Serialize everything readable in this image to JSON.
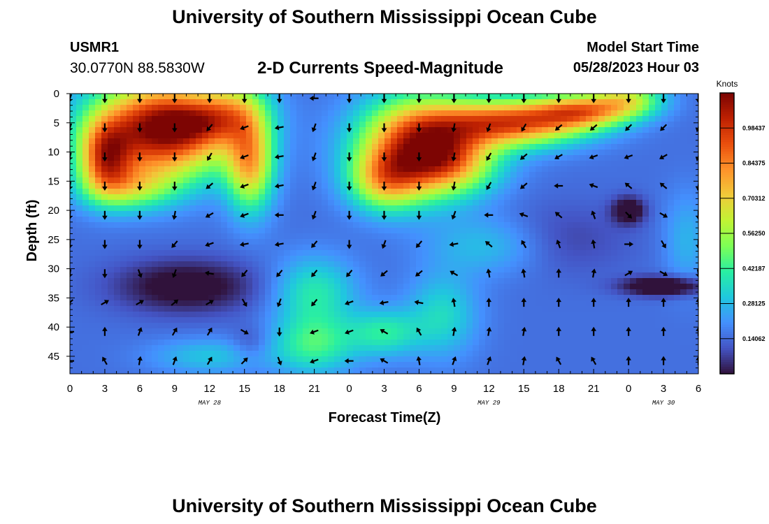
{
  "page": {
    "title": "University of Southern Mississippi Ocean Cube",
    "station_id": "USMR1",
    "station_coords": "30.0770N  88.5830W",
    "subtitle": "2-D Currents Speed-Magnitude",
    "model_start_label": "Model Start Time",
    "model_start_value": "05/28/2023 Hour 03",
    "footer_title": "University of Southern Mississippi Ocean Cube"
  },
  "chart_data": {
    "type": "heatmap",
    "title": "2-D Currents Speed-Magnitude",
    "xlabel": "Forecast Time(Z)",
    "ylabel": "Depth (ft)",
    "x_range_hours": [
      0,
      54
    ],
    "y_range_ft": [
      0,
      48
    ],
    "y_inverted": true,
    "x_ticks": [
      {
        "hour": 0,
        "label": "0"
      },
      {
        "hour": 3,
        "label": "3"
      },
      {
        "hour": 6,
        "label": "6"
      },
      {
        "hour": 9,
        "label": "9"
      },
      {
        "hour": 12,
        "label": "12"
      },
      {
        "hour": 15,
        "label": "15"
      },
      {
        "hour": 18,
        "label": "18"
      },
      {
        "hour": 21,
        "label": "21"
      },
      {
        "hour": 24,
        "label": "0"
      },
      {
        "hour": 27,
        "label": "3"
      },
      {
        "hour": 30,
        "label": "6"
      },
      {
        "hour": 33,
        "label": "9"
      },
      {
        "hour": 36,
        "label": "12"
      },
      {
        "hour": 39,
        "label": "15"
      },
      {
        "hour": 42,
        "label": "18"
      },
      {
        "hour": 45,
        "label": "21"
      },
      {
        "hour": 48,
        "label": "0"
      },
      {
        "hour": 51,
        "label": "3"
      },
      {
        "hour": 54,
        "label": "6"
      }
    ],
    "date_labels": [
      {
        "hour": 12,
        "label": "MAY 28"
      },
      {
        "hour": 36,
        "label": "MAY 29"
      },
      {
        "hour": 51,
        "label": "MAY 30"
      }
    ],
    "y_ticks": [
      0,
      5,
      10,
      15,
      20,
      25,
      30,
      35,
      40,
      45
    ],
    "y_tick_labels": [
      "0",
      "5",
      "10",
      "15",
      "20",
      "25",
      "30",
      "35",
      "40",
      "45"
    ],
    "colorbar": {
      "unit": "Knots",
      "range": [
        0,
        1.125
      ],
      "tick_values": [
        0.140625,
        0.28125,
        0.421875,
        0.5625,
        0.703125,
        0.84375,
        0.984375
      ],
      "tick_labels": [
        "0.14062",
        "0.28125",
        "0.42187",
        "0.56250",
        "0.70312",
        "0.84375",
        "0.98437"
      ],
      "colors": [
        "#30123b",
        "#4454c4",
        "#4490fe",
        "#1fc8de",
        "#29efa2",
        "#7dff56",
        "#c1f334",
        "#f1ca3a",
        "#fe922a",
        "#ea4f0d",
        "#be2102",
        "#7a0403"
      ]
    },
    "vector_hours": [
      0,
      3,
      6,
      9,
      12,
      15,
      18,
      21,
      24,
      27,
      30,
      33,
      36,
      39,
      42,
      45,
      48,
      51,
      54
    ],
    "vector_depths_ft": [
      0,
      5,
      10,
      15,
      20,
      25,
      30,
      35,
      40,
      45
    ],
    "direction_toward_deg": [
      [
        200,
        180,
        180,
        180,
        180,
        180,
        180,
        270,
        180,
        180,
        180,
        180,
        180,
        180,
        180,
        180,
        180,
        180,
        180
      ],
      [
        200,
        180,
        180,
        180,
        220,
        250,
        260,
        200,
        180,
        180,
        180,
        190,
        200,
        210,
        230,
        230,
        225,
        225,
        200
      ],
      [
        195,
        180,
        180,
        180,
        210,
        250,
        260,
        200,
        180,
        180,
        180,
        190,
        210,
        230,
        240,
        250,
        250,
        240,
        200
      ],
      [
        190,
        180,
        180,
        180,
        230,
        250,
        260,
        200,
        180,
        180,
        180,
        190,
        210,
        230,
        270,
        290,
        310,
        310,
        190
      ],
      [
        185,
        180,
        180,
        190,
        240,
        250,
        270,
        200,
        180,
        180,
        180,
        200,
        270,
        290,
        310,
        340,
        135,
        120,
        180
      ],
      [
        185,
        180,
        180,
        220,
        250,
        260,
        260,
        220,
        180,
        200,
        220,
        260,
        310,
        330,
        340,
        350,
        90,
        150,
        180
      ],
      [
        190,
        180,
        160,
        200,
        280,
        220,
        220,
        220,
        220,
        230,
        230,
        300,
        350,
        350,
        0,
        10,
        60,
        120,
        170
      ],
      [
        225,
        60,
        60,
        50,
        60,
        150,
        200,
        220,
        250,
        260,
        280,
        350,
        0,
        0,
        0,
        0,
        0,
        0,
        0
      ],
      [
        270,
        0,
        20,
        30,
        30,
        120,
        180,
        250,
        250,
        300,
        330,
        10,
        10,
        10,
        0,
        0,
        0,
        0,
        0
      ],
      [
        270,
        330,
        10,
        20,
        30,
        45,
        160,
        250,
        270,
        300,
        350,
        20,
        20,
        10,
        330,
        330,
        0,
        0,
        0
      ]
    ]
  }
}
